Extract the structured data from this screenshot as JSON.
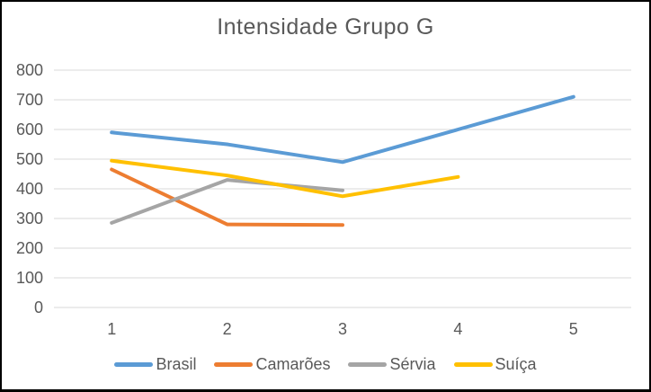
{
  "frame": {
    "border_color": "#000000",
    "background_color": "#FFFFFF"
  },
  "chart_data": {
    "type": "line",
    "title": "Intensidade Grupo G",
    "xlabel": "",
    "ylabel": "",
    "x_tick_labels": [
      "1",
      "2",
      "3",
      "4",
      "5"
    ],
    "y_ticks": [
      0,
      100,
      200,
      300,
      400,
      500,
      600,
      700,
      800
    ],
    "ylim": [
      0,
      800
    ],
    "grid": "horizontal",
    "legend_position": "bottom",
    "series": [
      {
        "name": "Brasil",
        "color": "#5B9BD5",
        "x": [
          1,
          2,
          3,
          4,
          5
        ],
        "values": [
          590,
          550,
          490,
          600,
          710
        ]
      },
      {
        "name": "Camarões",
        "color": "#ED7D31",
        "x": [
          1,
          2,
          3
        ],
        "values": [
          465,
          280,
          278
        ]
      },
      {
        "name": "Sérvia",
        "color": "#A5A5A5",
        "x": [
          1,
          2,
          3
        ],
        "values": [
          285,
          430,
          395
        ]
      },
      {
        "name": "Suíça",
        "color": "#FFC000",
        "x": [
          1,
          2,
          3,
          4
        ],
        "values": [
          495,
          445,
          375,
          440
        ]
      }
    ],
    "style": {
      "grid_color": "#D9D9D9",
      "tick_text_color": "#595959",
      "title_color": "#595959",
      "legend_text_color": "#595959",
      "line_width": 4
    }
  }
}
